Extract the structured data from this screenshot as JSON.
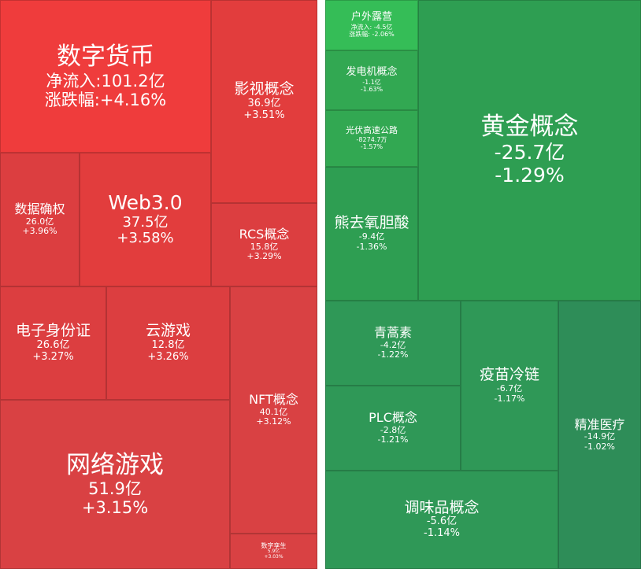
{
  "treemap_inflow": {
    "tiles": [
      {
        "name": "数字货币",
        "line1": "净流入:101.2亿",
        "line2": "涨跌幅:+4.16%"
      },
      {
        "name": "影视概念",
        "amount": "36.9亿",
        "change": "+3.51%"
      },
      {
        "name": "数据确权",
        "amount": "26.0亿",
        "change": "+3.96%"
      },
      {
        "name": "Web3.0",
        "amount": "37.5亿",
        "change": "+3.58%"
      },
      {
        "name": "RCS概念",
        "amount": "15.8亿",
        "change": "+3.29%"
      },
      {
        "name": "电子身份证",
        "amount": "26.6亿",
        "change": "+3.27%"
      },
      {
        "name": "云游戏",
        "amount": "12.8亿",
        "change": "+3.26%"
      },
      {
        "name": "NFT概念",
        "amount": "40.1亿",
        "change": "+3.12%"
      },
      {
        "name": "网络游戏",
        "amount": "51.9亿",
        "change": "+3.15%"
      },
      {
        "name": "数字孪生",
        "amount": "5.9亿",
        "change": "+3.03%"
      }
    ]
  },
  "treemap_outflow": {
    "tiles": [
      {
        "name": "户外露营",
        "line1": "净流入: -4.5亿",
        "line2": "涨跌幅: -2.06%"
      },
      {
        "name": "发电机概念",
        "amount": "-1.1亿",
        "change": "-1.63%"
      },
      {
        "name": "光伏高速公路",
        "amount": "-8274.7万",
        "change": "-1.57%"
      },
      {
        "name": "黄金概念",
        "amount": "-25.7亿",
        "change": "-1.29%"
      },
      {
        "name": "熊去氧胆酸",
        "amount": "-9.4亿",
        "change": "-1.36%"
      },
      {
        "name": "青蒿素",
        "amount": "-4.2亿",
        "change": "-1.22%"
      },
      {
        "name": "疫苗冷链",
        "amount": "-6.7亿",
        "change": "-1.17%"
      },
      {
        "name": "PLC概念",
        "amount": "-2.8亿",
        "change": "-1.21%"
      },
      {
        "name": "精准医疗",
        "amount": "-14.9亿",
        "change": "-1.02%"
      },
      {
        "name": "调味品概念",
        "amount": "-5.6亿",
        "change": "-1.14%"
      }
    ]
  }
}
